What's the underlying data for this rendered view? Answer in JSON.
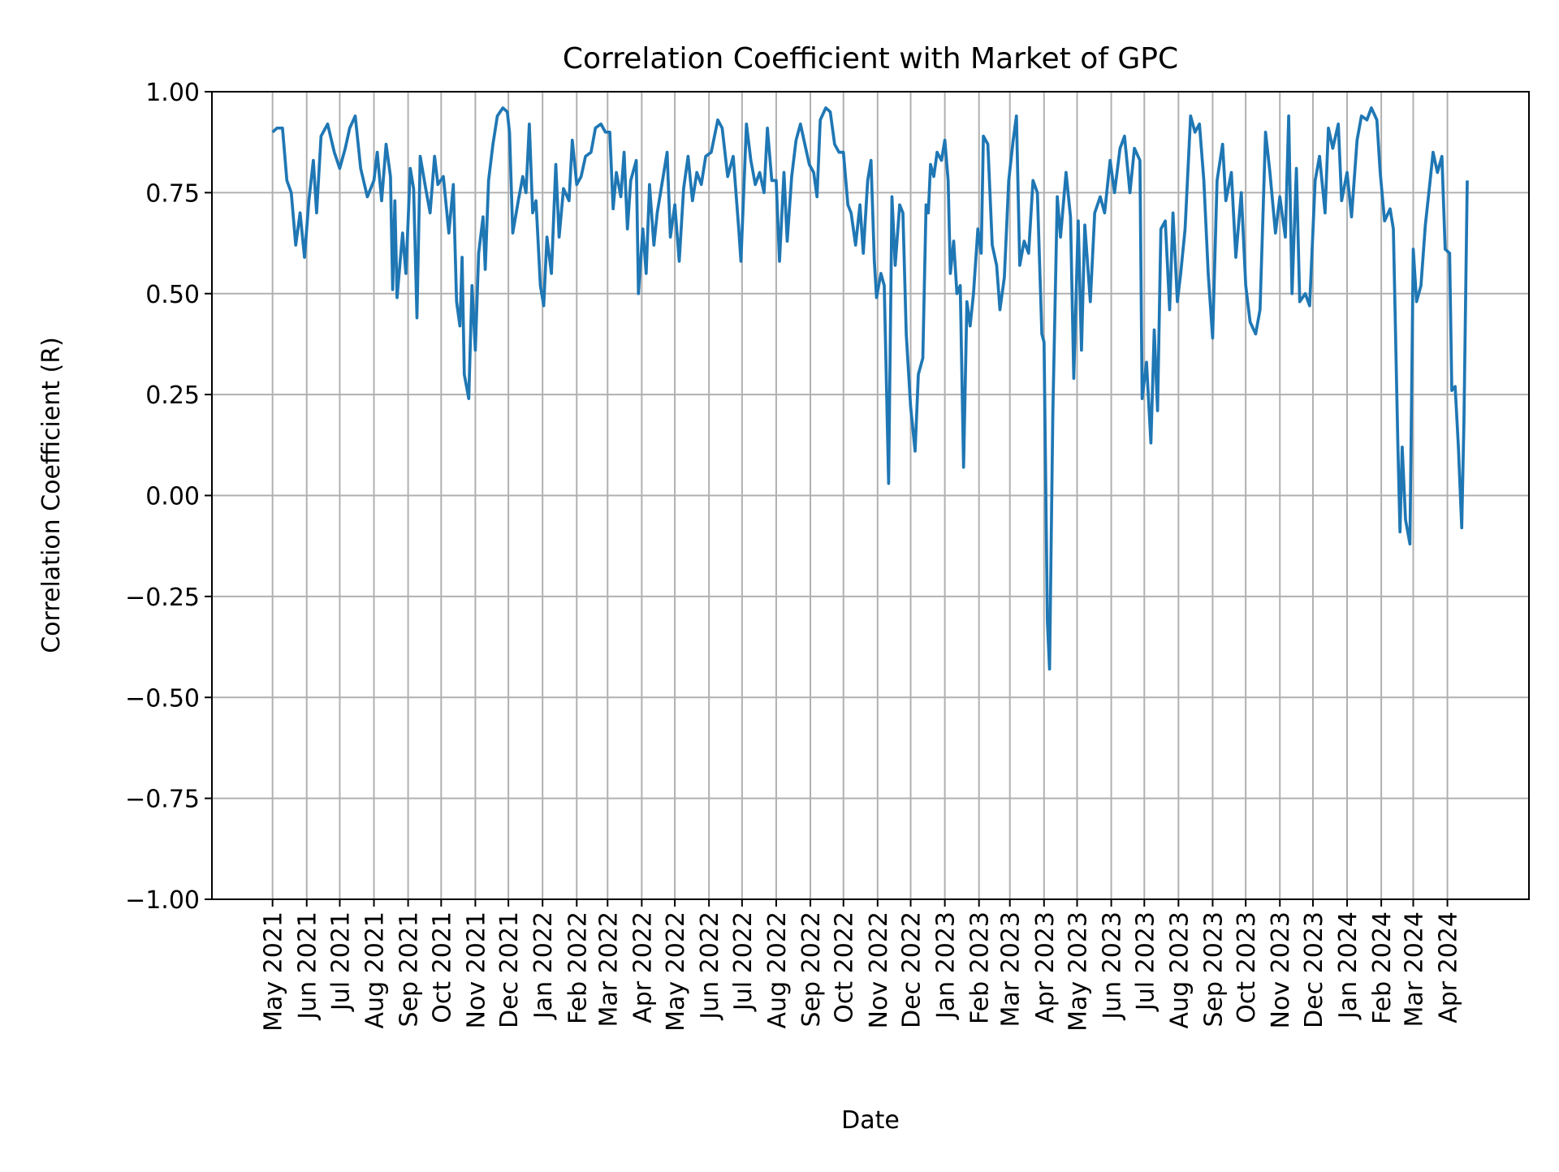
{
  "chart_data": {
    "type": "line",
    "title": "Correlation Coefficient with Market of GPC",
    "xlabel": "Date",
    "ylabel": "Correlation Coefficient (R)",
    "ylim": [
      -1.0,
      1.0
    ],
    "xlim": [
      "2021-03-07",
      "2024-06-14"
    ],
    "grid": true,
    "line_color": "#1f77b4",
    "grid_color": "#b0b0b0",
    "yticks": [
      1.0,
      0.75,
      0.5,
      0.25,
      0.0,
      -0.25,
      -0.5,
      -0.75,
      -1.0
    ],
    "ytick_labels": [
      "1.00",
      "0.75",
      "0.50",
      "0.25",
      "0.00",
      "−0.25",
      "−0.50",
      "−0.75",
      "−1.00"
    ],
    "xticks": [
      "2021-05-01",
      "2021-06-01",
      "2021-07-01",
      "2021-08-01",
      "2021-09-01",
      "2021-10-01",
      "2021-11-01",
      "2021-12-01",
      "2022-01-01",
      "2022-02-01",
      "2022-03-01",
      "2022-04-01",
      "2022-05-01",
      "2022-06-01",
      "2022-07-01",
      "2022-08-01",
      "2022-09-01",
      "2022-10-01",
      "2022-11-01",
      "2022-12-01",
      "2023-01-01",
      "2023-02-01",
      "2023-03-01",
      "2023-04-01",
      "2023-05-01",
      "2023-06-01",
      "2023-07-01",
      "2023-08-01",
      "2023-09-01",
      "2023-10-01",
      "2023-11-01",
      "2023-12-01",
      "2024-01-01",
      "2024-02-01",
      "2024-03-01",
      "2024-04-01"
    ],
    "xtick_labels": [
      "May 2021",
      "Jun 2021",
      "Jul 2021",
      "Aug 2021",
      "Sep 2021",
      "Oct 2021",
      "Nov 2021",
      "Dec 2021",
      "Jan 2022",
      "Feb 2022",
      "Mar 2022",
      "Apr 2022",
      "May 2022",
      "Jun 2022",
      "Jul 2022",
      "Aug 2022",
      "Sep 2022",
      "Oct 2022",
      "Nov 2022",
      "Dec 2022",
      "Jan 2023",
      "Feb 2023",
      "Mar 2023",
      "Apr 2023",
      "May 2023",
      "Jun 2023",
      "Jul 2023",
      "Aug 2023",
      "Sep 2023",
      "Oct 2023",
      "Nov 2023",
      "Dec 2023",
      "Jan 2024",
      "Feb 2024",
      "Mar 2024",
      "Apr 2024"
    ],
    "series": [
      {
        "x": [
          "2021-05-01",
          "2021-05-05",
          "2021-05-10",
          "2021-05-14",
          "2021-05-18",
          "2021-05-22",
          "2021-05-26",
          "2021-05-30",
          "2021-06-03",
          "2021-06-07",
          "2021-06-10",
          "2021-06-14",
          "2021-06-20",
          "2021-06-26",
          "2021-07-01",
          "2021-07-06",
          "2021-07-10",
          "2021-07-15",
          "2021-07-20",
          "2021-07-26",
          "2021-08-01",
          "2021-08-04",
          "2021-08-08",
          "2021-08-12",
          "2021-08-16",
          "2021-08-18",
          "2021-08-20",
          "2021-08-22",
          "2021-08-27",
          "2021-08-30",
          "2021-09-03",
          "2021-09-06",
          "2021-09-09",
          "2021-09-12",
          "2021-09-17",
          "2021-09-21",
          "2021-09-25",
          "2021-09-28",
          "2021-10-03",
          "2021-10-08",
          "2021-10-12",
          "2021-10-15",
          "2021-10-18",
          "2021-10-20",
          "2021-10-22",
          "2021-10-26",
          "2021-10-29",
          "2021-11-01",
          "2021-11-04",
          "2021-11-08",
          "2021-11-10",
          "2021-11-13",
          "2021-11-17",
          "2021-11-21",
          "2021-11-26",
          "2021-11-30",
          "2021-12-02",
          "2021-12-05",
          "2021-12-10",
          "2021-12-14",
          "2021-12-17",
          "2021-12-20",
          "2021-12-23",
          "2021-12-26",
          "2021-12-30",
          "2022-01-02",
          "2022-01-05",
          "2022-01-09",
          "2022-01-13",
          "2022-01-16",
          "2022-01-20",
          "2022-01-25",
          "2022-01-28",
          "2022-02-01",
          "2022-02-05",
          "2022-02-09",
          "2022-02-14",
          "2022-02-18",
          "2022-02-23",
          "2022-02-27",
          "2022-03-03",
          "2022-03-06",
          "2022-03-09",
          "2022-03-13",
          "2022-03-16",
          "2022-03-19",
          "2022-03-22",
          "2022-03-27",
          "2022-03-29",
          "2022-04-02",
          "2022-04-05",
          "2022-04-08",
          "2022-04-12",
          "2022-04-15",
          "2022-04-24",
          "2022-04-27",
          "2022-05-01",
          "2022-05-05",
          "2022-05-09",
          "2022-05-13",
          "2022-05-17",
          "2022-05-21",
          "2022-05-25",
          "2022-05-29",
          "2022-06-03",
          "2022-06-09",
          "2022-06-13",
          "2022-06-18",
          "2022-06-23",
          "2022-06-28",
          "2022-06-30",
          "2022-07-05",
          "2022-07-09",
          "2022-07-13",
          "2022-07-17",
          "2022-07-21",
          "2022-07-24",
          "2022-07-28",
          "2022-08-01",
          "2022-08-04",
          "2022-08-08",
          "2022-08-11",
          "2022-08-15",
          "2022-08-19",
          "2022-08-23",
          "2022-08-27",
          "2022-08-31",
          "2022-09-04",
          "2022-09-07",
          "2022-09-10",
          "2022-09-15",
          "2022-09-19",
          "2022-09-23",
          "2022-09-27",
          "2022-10-01",
          "2022-10-05",
          "2022-10-08",
          "2022-10-12",
          "2022-10-16",
          "2022-10-19",
          "2022-10-23",
          "2022-10-26",
          "2022-10-29",
          "2022-10-31",
          "2022-11-04",
          "2022-11-07",
          "2022-11-11",
          "2022-11-14",
          "2022-11-17",
          "2022-11-21",
          "2022-11-24",
          "2022-11-27",
          "2022-12-01",
          "2022-12-05",
          "2022-12-08",
          "2022-12-12",
          "2022-12-15",
          "2022-12-17",
          "2022-12-19",
          "2022-12-22",
          "2022-12-25",
          "2022-12-29",
          "2023-01-01",
          "2023-01-04",
          "2023-01-06",
          "2023-01-09",
          "2023-01-12",
          "2023-01-15",
          "2023-01-18",
          "2023-01-21",
          "2023-01-24",
          "2023-01-27",
          "2023-01-31",
          "2023-02-03",
          "2023-02-05",
          "2023-02-09",
          "2023-02-13",
          "2023-02-17",
          "2023-02-20",
          "2023-02-24",
          "2023-02-28",
          "2023-03-04",
          "2023-03-07",
          "2023-03-10",
          "2023-03-14",
          "2023-03-18",
          "2023-03-22",
          "2023-03-26",
          "2023-03-30",
          "2023-04-01",
          "2023-04-04",
          "2023-04-06",
          "2023-04-09",
          "2023-04-13",
          "2023-04-16",
          "2023-04-21",
          "2023-04-25",
          "2023-04-28",
          "2023-05-02",
          "2023-05-05",
          "2023-05-08",
          "2023-05-13",
          "2023-05-17",
          "2023-05-22",
          "2023-05-26",
          "2023-05-31",
          "2023-06-04",
          "2023-06-09",
          "2023-06-13",
          "2023-06-18",
          "2023-06-22",
          "2023-06-27",
          "2023-06-29",
          "2023-07-03",
          "2023-07-07",
          "2023-07-10",
          "2023-07-13",
          "2023-07-16",
          "2023-07-20",
          "2023-07-24",
          "2023-07-27",
          "2023-07-31",
          "2023-08-03",
          "2023-08-07",
          "2023-08-12",
          "2023-08-16",
          "2023-08-20",
          "2023-08-24",
          "2023-08-28",
          "2023-09-01",
          "2023-09-05",
          "2023-09-10",
          "2023-09-13",
          "2023-09-18",
          "2023-09-22",
          "2023-09-27",
          "2023-10-01",
          "2023-10-05",
          "2023-10-10",
          "2023-10-14",
          "2023-10-19",
          "2023-10-23",
          "2023-10-28",
          "2023-11-01",
          "2023-11-06",
          "2023-11-09",
          "2023-11-12",
          "2023-11-16",
          "2023-11-19",
          "2023-11-24",
          "2023-11-28",
          "2023-12-03",
          "2023-12-07",
          "2023-12-12",
          "2023-12-15",
          "2023-12-19",
          "2023-12-24",
          "2023-12-27",
          "2024-01-01",
          "2024-01-05",
          "2024-01-10",
          "2024-01-14",
          "2024-01-19",
          "2024-01-23",
          "2024-01-28",
          "2024-01-31",
          "2024-02-04",
          "2024-02-09",
          "2024-02-12",
          "2024-02-16",
          "2024-02-18",
          "2024-02-20",
          "2024-02-23",
          "2024-02-27",
          "2024-03-01",
          "2024-03-04",
          "2024-03-08",
          "2024-03-12",
          "2024-03-16",
          "2024-03-19",
          "2024-03-23",
          "2024-03-27",
          "2024-03-30",
          "2024-04-03",
          "2024-04-05",
          "2024-04-08",
          "2024-04-11",
          "2024-04-14",
          "2024-04-16",
          "2024-04-19"
        ],
        "y": [
          0.9,
          0.91,
          0.91,
          0.78,
          0.75,
          0.62,
          0.7,
          0.59,
          0.73,
          0.83,
          0.7,
          0.89,
          0.92,
          0.85,
          0.81,
          0.86,
          0.91,
          0.94,
          0.81,
          0.74,
          0.78,
          0.85,
          0.73,
          0.87,
          0.79,
          0.51,
          0.73,
          0.49,
          0.65,
          0.55,
          0.81,
          0.76,
          0.44,
          0.84,
          0.76,
          0.7,
          0.84,
          0.77,
          0.79,
          0.65,
          0.77,
          0.48,
          0.42,
          0.59,
          0.3,
          0.24,
          0.52,
          0.36,
          0.6,
          0.69,
          0.56,
          0.78,
          0.87,
          0.94,
          0.96,
          0.95,
          0.9,
          0.65,
          0.73,
          0.79,
          0.75,
          0.92,
          0.7,
          0.73,
          0.52,
          0.47,
          0.64,
          0.55,
          0.82,
          0.64,
          0.76,
          0.73,
          0.88,
          0.77,
          0.79,
          0.84,
          0.85,
          0.91,
          0.92,
          0.9,
          0.9,
          0.71,
          0.8,
          0.74,
          0.85,
          0.66,
          0.78,
          0.83,
          0.5,
          0.66,
          0.55,
          0.77,
          0.62,
          0.7,
          0.85,
          0.64,
          0.72,
          0.58,
          0.76,
          0.84,
          0.73,
          0.8,
          0.77,
          0.84,
          0.85,
          0.93,
          0.91,
          0.79,
          0.84,
          0.66,
          0.58,
          0.92,
          0.83,
          0.77,
          0.8,
          0.75,
          0.91,
          0.78,
          0.78,
          0.58,
          0.8,
          0.63,
          0.79,
          0.88,
          0.92,
          0.87,
          0.82,
          0.8,
          0.74,
          0.93,
          0.96,
          0.95,
          0.87,
          0.85,
          0.85,
          0.72,
          0.7,
          0.62,
          0.72,
          0.6,
          0.78,
          0.83,
          0.58,
          0.49,
          0.55,
          0.52,
          0.03,
          0.74,
          0.57,
          0.72,
          0.7,
          0.4,
          0.22,
          0.11,
          0.3,
          0.34,
          0.72,
          0.7,
          0.82,
          0.79,
          0.85,
          0.83,
          0.88,
          0.78,
          0.55,
          0.63,
          0.5,
          0.52,
          0.07,
          0.48,
          0.42,
          0.5,
          0.66,
          0.6,
          0.89,
          0.87,
          0.62,
          0.57,
          0.46,
          0.54,
          0.78,
          0.88,
          0.94,
          0.57,
          0.63,
          0.6,
          0.78,
          0.75,
          0.4,
          0.38,
          -0.31,
          -0.43,
          0.2,
          0.74,
          0.64,
          0.8,
          0.69,
          0.29,
          0.68,
          0.36,
          0.67,
          0.48,
          0.7,
          0.74,
          0.7,
          0.83,
          0.75,
          0.86,
          0.89,
          0.75,
          0.86,
          0.83,
          0.24,
          0.33,
          0.13,
          0.41,
          0.21,
          0.66,
          0.68,
          0.46,
          0.7,
          0.48,
          0.55,
          0.66,
          0.94,
          0.9,
          0.92,
          0.78,
          0.55,
          0.39,
          0.78,
          0.87,
          0.73,
          0.8,
          0.59,
          0.75,
          0.52,
          0.43,
          0.4,
          0.46,
          0.9,
          0.8,
          0.65,
          0.74,
          0.64,
          0.94,
          0.5,
          0.81,
          0.48,
          0.5,
          0.47,
          0.78,
          0.84,
          0.7,
          0.91,
          0.86,
          0.92,
          0.73,
          0.8,
          0.69,
          0.88,
          0.94,
          0.93,
          0.96,
          0.93,
          0.8,
          0.68,
          0.71,
          0.66,
          0.13,
          -0.09,
          0.12,
          -0.06,
          -0.12,
          0.61,
          0.48,
          0.52,
          0.67,
          0.77,
          0.85,
          0.8,
          0.84,
          0.61,
          0.6,
          0.26,
          0.27,
          0.12,
          -0.08,
          0.18,
          0.78
        ]
      }
    ]
  }
}
